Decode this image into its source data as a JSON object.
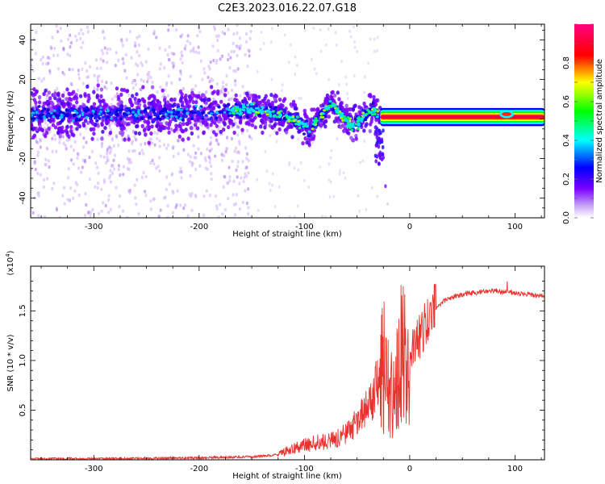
{
  "title": "C2E3.2023.016.22.07.G18",
  "chart_data": [
    {
      "type": "heatmap",
      "xlabel": "Height of straight line (km)",
      "ylabel": "Frequency (Hz)",
      "xlim": [
        -360,
        128
      ],
      "ylim": [
        -50,
        48
      ],
      "xticks": [
        "-300",
        "-200",
        "-100",
        "0",
        "100"
      ],
      "yticks": [
        "-40",
        "-20",
        "0",
        "20",
        "40"
      ],
      "colorbar": {
        "label": "Normalized spectral amplitude",
        "range": [
          0,
          1
        ],
        "ticks": [
          "0.0",
          "0.2",
          "0.4",
          "0.6",
          "0.8"
        ],
        "colors": [
          "#ffffff",
          "#c9a8f5",
          "#7a00ff",
          "#0000ff",
          "#00ffff",
          "#00ff00",
          "#ffff00",
          "#ff0000",
          "#ff0080"
        ]
      },
      "centerline": [
        {
          "x": -360,
          "f": 2
        },
        {
          "x": -300,
          "f": 3
        },
        {
          "x": -250,
          "f": 3
        },
        {
          "x": -200,
          "f": 3
        },
        {
          "x": -170,
          "f": 4
        },
        {
          "x": -150,
          "f": 5
        },
        {
          "x": -130,
          "f": 3
        },
        {
          "x": -110,
          "f": 0
        },
        {
          "x": -95,
          "f": -5
        },
        {
          "x": -85,
          "f": 1
        },
        {
          "x": -75,
          "f": 8
        },
        {
          "x": -65,
          "f": 2
        },
        {
          "x": -55,
          "f": -4
        },
        {
          "x": -45,
          "f": 0
        },
        {
          "x": -35,
          "f": 5
        },
        {
          "x": -28,
          "f": 2
        },
        {
          "x": 0,
          "f": 1
        },
        {
          "x": 50,
          "f": 1
        },
        {
          "x": 90,
          "f": 2
        },
        {
          "x": 128,
          "f": 1
        }
      ]
    },
    {
      "type": "line",
      "xlabel": "Height of straight line (km)",
      "ylabel": "SNR (10 * v/v)",
      "scale_label": "(x10",
      "scale_exp": "4",
      "scale_close": ")",
      "xlim": [
        -360,
        128
      ],
      "ylim": [
        0,
        1.95
      ],
      "xticks": [
        "-300",
        "-200",
        "-100",
        "0",
        "100"
      ],
      "yticks": [
        "0.5",
        "1.0",
        "1.5"
      ],
      "color": "#e8322e",
      "profile": [
        {
          "x": -360,
          "y": 0.01
        },
        {
          "x": -300,
          "y": 0.01
        },
        {
          "x": -200,
          "y": 0.02
        },
        {
          "x": -150,
          "y": 0.03
        },
        {
          "x": -125,
          "y": 0.05
        },
        {
          "x": -110,
          "y": 0.12
        },
        {
          "x": -90,
          "y": 0.17
        },
        {
          "x": -70,
          "y": 0.2
        },
        {
          "x": -55,
          "y": 0.32
        },
        {
          "x": -45,
          "y": 0.45
        },
        {
          "x": -35,
          "y": 0.6
        },
        {
          "x": -28,
          "y": 1.0
        },
        {
          "x": -22,
          "y": 0.75
        },
        {
          "x": -15,
          "y": 0.6
        },
        {
          "x": -10,
          "y": 1.05
        },
        {
          "x": 0,
          "y": 1.1
        },
        {
          "x": 10,
          "y": 1.25
        },
        {
          "x": 20,
          "y": 1.48
        },
        {
          "x": 35,
          "y": 1.62
        },
        {
          "x": 55,
          "y": 1.68
        },
        {
          "x": 80,
          "y": 1.7
        },
        {
          "x": 100,
          "y": 1.68
        },
        {
          "x": 128,
          "y": 1.65
        }
      ]
    }
  ]
}
